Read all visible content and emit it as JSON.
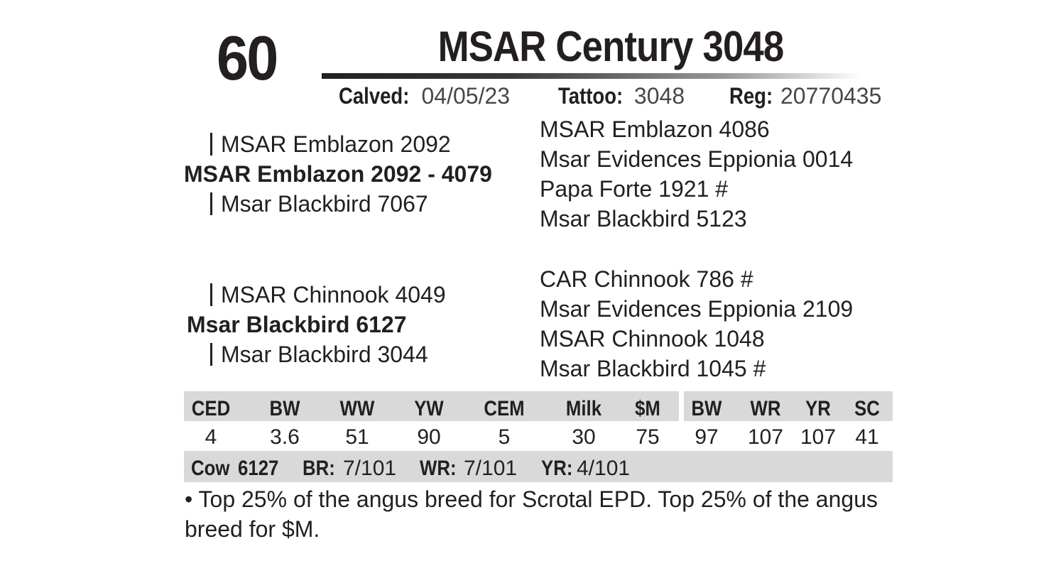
{
  "lot_number": "60",
  "animal_name": "MSAR Century 3048",
  "info": {
    "calved_label": "Calved:",
    "calved_value": "04/05/23",
    "tattoo_label": "Tattoo:",
    "tattoo_value": "3048",
    "reg_label": "Reg:",
    "reg_value": "20770435"
  },
  "pedigree": {
    "sire": {
      "name": "MSAR Emblazon 2092 - 4079",
      "sire": "MSAR Emblazon 2092",
      "dam": "Msar Blackbird 7067",
      "great_grandparents": [
        "MSAR Emblazon 4086",
        "Msar Evidences Eppionia 0014",
        "Papa Forte 1921 #",
        "Msar Blackbird 5123"
      ]
    },
    "dam": {
      "name": "Msar Blackbird 6127",
      "sire": "MSAR Chinnook 4049",
      "dam": "Msar Blackbird 3044",
      "great_grandparents": [
        "CAR Chinnook 786 #",
        "Msar Evidences Eppionia 2109",
        "MSAR Chinnook 1048",
        "Msar Blackbird 1045 #"
      ]
    }
  },
  "epd": {
    "headers": [
      "CED",
      "BW",
      "WW",
      "YW",
      "CEM",
      "Milk",
      "$M",
      "BW",
      "WR",
      "YR",
      "SC"
    ],
    "values": [
      "4",
      "3.6",
      "51",
      "90",
      "5",
      "30",
      "75",
      "97",
      "107",
      "107",
      "41"
    ]
  },
  "cow_row": {
    "cow_label": "Cow",
    "cow_value": "6127",
    "br_label": "BR:",
    "br_value": "7/101",
    "wr_label": "WR:",
    "wr_value": "7/101",
    "yr_label": "YR:",
    "yr_value": "4/101"
  },
  "comment": "• Top 25% of the angus breed for Scrotal EPD.  Top 25% of the angus breed for $M."
}
